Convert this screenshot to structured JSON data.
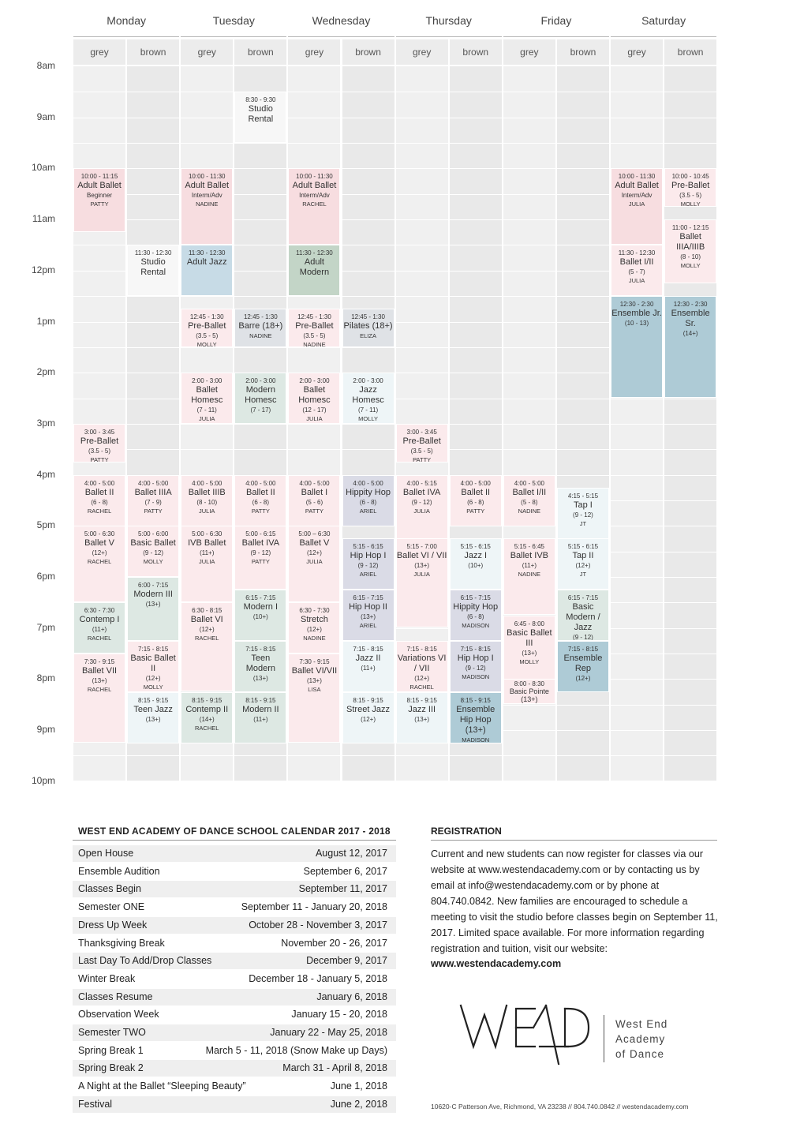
{
  "schedule": {
    "days": [
      "Monday",
      "Tuesday",
      "Wednesday",
      "Thursday",
      "Friday",
      "Saturday"
    ],
    "rooms": [
      "grey",
      "brown"
    ],
    "time_labels": [
      "8am",
      "9am",
      "10am",
      "11am",
      "12pm",
      "1pm",
      "2pm",
      "3pm",
      "4pm",
      "5pm",
      "6pm",
      "7pm",
      "8pm",
      "9pm",
      "10pm"
    ],
    "classes": [
      {
        "day": 1,
        "room": 1,
        "start": 8.5,
        "end": 9.5,
        "time": "8:30 - 9:30",
        "name": "Studio Rental",
        "age": "",
        "instructor": "",
        "color": "white"
      },
      {
        "day": 0,
        "room": 0,
        "start": 10.0,
        "end": 11.25,
        "time": "10:00 - 11:15",
        "name": "Adult Ballet",
        "age": "Beginner",
        "instructor": "PATTY",
        "color": "pink"
      },
      {
        "day": 0,
        "room": 1,
        "start": 11.5,
        "end": 12.5,
        "time": "11:30 - 12:30",
        "name": "Studio Rental",
        "age": "",
        "instructor": "",
        "color": "white"
      },
      {
        "day": 0,
        "room": 0,
        "start": 15.0,
        "end": 15.75,
        "time": "3:00 - 3:45",
        "name": "Pre-Ballet",
        "age": "(3.5 - 5)",
        "instructor": "PATTY",
        "color": "pinkL"
      },
      {
        "day": 0,
        "room": 0,
        "start": 16.0,
        "end": 17.0,
        "time": "4:00 - 5:00",
        "name": "Ballet II",
        "age": "(6 - 8)",
        "instructor": "RACHEL",
        "color": "pinkL"
      },
      {
        "day": 0,
        "room": 1,
        "start": 16.0,
        "end": 17.0,
        "time": "4:00 - 5:00",
        "name": "Ballet IIIA",
        "age": "(7 - 9)",
        "instructor": "PATTY",
        "color": "pinkL"
      },
      {
        "day": 0,
        "room": 0,
        "start": 17.0,
        "end": 18.5,
        "time": "5:00 - 6:30",
        "name": "Ballet V",
        "age": "(12+)",
        "instructor": "RACHEL",
        "color": "pinkL"
      },
      {
        "day": 0,
        "room": 1,
        "start": 17.0,
        "end": 18.0,
        "time": "5:00 - 6:00",
        "name": "Basic Ballet",
        "age": "(9 - 12)",
        "instructor": "MOLLY",
        "color": "pinkL"
      },
      {
        "day": 0,
        "room": 1,
        "start": 18.0,
        "end": 19.25,
        "time": "6:00 - 7:15",
        "name": "Modern III",
        "age": "(13+)",
        "instructor": "",
        "color": "greenL"
      },
      {
        "day": 0,
        "room": 0,
        "start": 18.5,
        "end": 19.5,
        "time": "6:30 - 7:30",
        "name": "Contemp I",
        "age": "(11+)",
        "instructor": "RACHEL",
        "color": "greenL"
      },
      {
        "day": 0,
        "room": 1,
        "start": 19.25,
        "end": 20.25,
        "time": "7:15 - 8:15",
        "name": "Basic Ballet II",
        "age": "(12+)",
        "instructor": "MOLLY",
        "color": "pinkL"
      },
      {
        "day": 0,
        "room": 0,
        "start": 19.5,
        "end": 21.25,
        "time": "7:30 - 9:15",
        "name": "Ballet VII",
        "age": "(13+)",
        "instructor": "RACHEL",
        "color": "pinkL"
      },
      {
        "day": 0,
        "room": 1,
        "start": 20.25,
        "end": 21.25,
        "time": "8:15 - 9:15",
        "name": "Teen Jazz",
        "age": "(13+)",
        "instructor": "",
        "color": "blueL"
      },
      {
        "day": 1,
        "room": 0,
        "start": 10.0,
        "end": 11.5,
        "time": "10:00 - 11:30",
        "name": "Adult Ballet",
        "age": "Interm/Adv",
        "instructor": "NADINE",
        "color": "pink"
      },
      {
        "day": 1,
        "room": 0,
        "start": 11.5,
        "end": 12.5,
        "time": "11:30 - 12:30",
        "name": "Adult Jazz",
        "age": "",
        "instructor": "",
        "color": "blue"
      },
      {
        "day": 1,
        "room": 0,
        "start": 12.75,
        "end": 13.5,
        "time": "12:45 - 1:30",
        "name": "Pre-Ballet",
        "age": "(3.5 - 5)",
        "instructor": "MOLLY",
        "color": "pinkL"
      },
      {
        "day": 1,
        "room": 1,
        "start": 12.75,
        "end": 13.5,
        "time": "12:45 - 1:30",
        "name": "Barre (18+)",
        "age": "",
        "instructor": "NADINE",
        "color": "grey2"
      },
      {
        "day": 1,
        "room": 0,
        "start": 14.0,
        "end": 15.0,
        "time": "2:00 - 3:00",
        "name": "Ballet Homesc",
        "age": "(7 - 11)",
        "instructor": "JULIA",
        "color": "pinkL"
      },
      {
        "day": 1,
        "room": 1,
        "start": 14.0,
        "end": 15.0,
        "time": "2:00 - 3:00",
        "name": "Modern Homesc",
        "age": "(7 - 17)",
        "instructor": "",
        "color": "greenL"
      },
      {
        "day": 1,
        "room": 0,
        "start": 16.0,
        "end": 17.0,
        "time": "4:00 - 5:00",
        "name": "Ballet IIIB",
        "age": "(8 - 10)",
        "instructor": "JULIA",
        "color": "pinkL"
      },
      {
        "day": 1,
        "room": 1,
        "start": 16.0,
        "end": 17.0,
        "time": "4:00 - 5:00",
        "name": "Ballet II",
        "age": "(6 - 8)",
        "instructor": "PATTY",
        "color": "pinkL"
      },
      {
        "day": 1,
        "room": 0,
        "start": 17.0,
        "end": 18.5,
        "time": "5:00 - 6:30",
        "name": "IVB Ballet",
        "age": "(11+)",
        "instructor": "JULIA",
        "color": "pinkL"
      },
      {
        "day": 1,
        "room": 1,
        "start": 17.0,
        "end": 18.25,
        "time": "5:00 - 6:15",
        "name": "Ballet IVA",
        "age": "(9 - 12)",
        "instructor": "PATTY",
        "color": "pinkL"
      },
      {
        "day": 1,
        "room": 1,
        "start": 18.25,
        "end": 19.25,
        "time": "6:15 - 7:15",
        "name": "Modern I",
        "age": "(10+)",
        "instructor": "",
        "color": "greenL"
      },
      {
        "day": 1,
        "room": 0,
        "start": 18.5,
        "end": 20.25,
        "time": "6:30 - 8:15",
        "name": "Ballet VI",
        "age": "(12+)",
        "instructor": "RACHEL",
        "color": "pinkL"
      },
      {
        "day": 1,
        "room": 1,
        "start": 19.25,
        "end": 20.25,
        "time": "7:15 - 8:15",
        "name": "Teen Modern",
        "age": "(13+)",
        "instructor": "",
        "color": "greenL"
      },
      {
        "day": 1,
        "room": 0,
        "start": 20.25,
        "end": 21.25,
        "time": "8:15 - 9:15",
        "name": "Contemp II",
        "age": "(14+)",
        "instructor": "RACHEL",
        "color": "greenL"
      },
      {
        "day": 1,
        "room": 1,
        "start": 20.25,
        "end": 21.25,
        "time": "8:15 - 9:15",
        "name": "Modern II",
        "age": "(11+)",
        "instructor": "",
        "color": "greenL"
      },
      {
        "day": 2,
        "room": 0,
        "start": 10.0,
        "end": 11.5,
        "time": "10:00 - 11:30",
        "name": "Adult Ballet",
        "age": "Interm/Adv",
        "instructor": "RACHEL",
        "color": "pink"
      },
      {
        "day": 2,
        "room": 0,
        "start": 11.5,
        "end": 12.5,
        "time": "11:30 - 12:30",
        "name": "Adult Modern",
        "age": "",
        "instructor": "",
        "color": "green"
      },
      {
        "day": 2,
        "room": 0,
        "start": 12.75,
        "end": 13.5,
        "time": "12:45 - 1:30",
        "name": "Pre-Ballet",
        "age": "(3.5 - 5)",
        "instructor": "NADINE",
        "color": "pinkL"
      },
      {
        "day": 2,
        "room": 1,
        "start": 12.75,
        "end": 13.5,
        "time": "12:45 - 1:30",
        "name": "Pilates (18+)",
        "age": "",
        "instructor": "ELIZA",
        "color": "grey2"
      },
      {
        "day": 2,
        "room": 0,
        "start": 14.0,
        "end": 15.0,
        "time": "2:00 - 3:00",
        "name": "Ballet Homesc",
        "age": "(12 - 17)",
        "instructor": "JULIA",
        "color": "pinkL"
      },
      {
        "day": 2,
        "room": 1,
        "start": 14.0,
        "end": 15.0,
        "time": "2:00 - 3:00",
        "name": "Jazz Homesc",
        "age": "(7 - 11)",
        "instructor": "MOLLY",
        "color": "blueL"
      },
      {
        "day": 2,
        "room": 0,
        "start": 16.0,
        "end": 17.0,
        "time": "4:00 - 5:00",
        "name": "Ballet I",
        "age": "(5 - 6)",
        "instructor": "PATTY",
        "color": "pinkL"
      },
      {
        "day": 2,
        "room": 1,
        "start": 16.0,
        "end": 17.0,
        "time": "4:00 - 5:00",
        "name": "Hippity Hop",
        "age": "(6 - 8)",
        "instructor": "ARIEL",
        "color": "lav"
      },
      {
        "day": 2,
        "room": 0,
        "start": 17.0,
        "end": 18.5,
        "time": "5:00 – 6:30",
        "name": "Ballet V",
        "age": "(12+)",
        "instructor": "JULIA",
        "color": "pinkL"
      },
      {
        "day": 2,
        "room": 1,
        "start": 17.25,
        "end": 18.25,
        "time": "5:15 - 6:15",
        "name": "Hip Hop I",
        "age": "(9 - 12)",
        "instructor": "ARIEL",
        "color": "lav"
      },
      {
        "day": 2,
        "room": 1,
        "start": 18.25,
        "end": 19.25,
        "time": "6:15 - 7:15",
        "name": "Hip Hop II",
        "age": "(13+)",
        "instructor": "ARIEL",
        "color": "lav"
      },
      {
        "day": 2,
        "room": 0,
        "start": 18.5,
        "end": 19.5,
        "time": "6:30 - 7:30",
        "name": "Stretch",
        "age": "(12+)",
        "instructor": "NADINE",
        "color": "pinkL"
      },
      {
        "day": 2,
        "room": 1,
        "start": 19.25,
        "end": 20.25,
        "time": "7:15 - 8:15",
        "name": "Jazz II",
        "age": "(11+)",
        "instructor": "",
        "color": "blueL"
      },
      {
        "day": 2,
        "room": 0,
        "start": 19.5,
        "end": 21.25,
        "time": "7:30 - 9:15",
        "name": "Ballet VI/VII",
        "age": "(13+)",
        "instructor": "LISA",
        "color": "pinkL"
      },
      {
        "day": 2,
        "room": 1,
        "start": 20.25,
        "end": 21.25,
        "time": "8:15 - 9:15",
        "name": "Street Jazz",
        "age": "(12+)",
        "instructor": "",
        "color": "blueL"
      },
      {
        "day": 3,
        "room": 0,
        "start": 15.0,
        "end": 15.75,
        "time": "3:00 - 3:45",
        "name": "Pre-Ballet",
        "age": "(3.5 - 5)",
        "instructor": "PATTY",
        "color": "pinkL"
      },
      {
        "day": 3,
        "room": 0,
        "start": 16.0,
        "end": 17.25,
        "time": "4:00 - 5:15",
        "name": "Ballet IVA",
        "age": "(9 - 12)",
        "instructor": "JULIA",
        "color": "pinkL"
      },
      {
        "day": 3,
        "room": 1,
        "start": 16.0,
        "end": 17.0,
        "time": "4:00 - 5:00",
        "name": "Ballet II",
        "age": "(6 - 8)",
        "instructor": "PATTY",
        "color": "pinkL"
      },
      {
        "day": 3,
        "room": 0,
        "start": 17.25,
        "end": 19.0,
        "time": "5:15 - 7:00",
        "name": "Ballet VI / VII",
        "age": "(13+)",
        "instructor": "JULIA",
        "color": "pinkL"
      },
      {
        "day": 3,
        "room": 1,
        "start": 17.25,
        "end": 18.25,
        "time": "5:15 - 6:15",
        "name": "Jazz I",
        "age": "(10+)",
        "instructor": "",
        "color": "blueL"
      },
      {
        "day": 3,
        "room": 1,
        "start": 18.25,
        "end": 19.25,
        "time": "6:15 - 7:15",
        "name": "Hippity Hop",
        "age": "(6 - 8)",
        "instructor": "MADISON",
        "color": "lav"
      },
      {
        "day": 3,
        "room": 0,
        "start": 19.25,
        "end": 20.25,
        "time": "7:15 - 8:15",
        "name": "Variations VI / VII",
        "age": "(12+)",
        "instructor": "RACHEL",
        "color": "pinkL"
      },
      {
        "day": 3,
        "room": 1,
        "start": 19.25,
        "end": 20.25,
        "time": "7:15 - 8:15",
        "name": "Hip Hop I",
        "age": "(9 - 12)",
        "instructor": "MADISON",
        "color": "lav"
      },
      {
        "day": 3,
        "room": 0,
        "start": 20.25,
        "end": 21.25,
        "time": "8:15 - 9:15",
        "name": "Jazz III",
        "age": "(13+)",
        "instructor": "",
        "color": "blueL"
      },
      {
        "day": 3,
        "room": 1,
        "start": 20.25,
        "end": 21.25,
        "time": "8:15 - 9:15",
        "name": "Ensemble Hip Hop (13+)",
        "age": "",
        "instructor": "MADISON",
        "color": "teal"
      },
      {
        "day": 4,
        "room": 0,
        "start": 16.0,
        "end": 17.0,
        "time": "4:00 - 5:00",
        "name": "Ballet I/II",
        "age": "(5 - 8)",
        "instructor": "NADINE",
        "color": "pinkL"
      },
      {
        "day": 4,
        "room": 1,
        "start": 16.25,
        "end": 17.25,
        "time": "4:15 - 5:15",
        "name": "Tap I",
        "age": "(9 - 12)",
        "instructor": "JT",
        "color": "blueL"
      },
      {
        "day": 4,
        "room": 0,
        "start": 17.25,
        "end": 18.75,
        "time": "5:15 - 6:45",
        "name": "Ballet IVB",
        "age": "(11+)",
        "instructor": "NADINE",
        "color": "pinkL"
      },
      {
        "day": 4,
        "room": 1,
        "start": 17.25,
        "end": 18.25,
        "time": "5:15 - 6:15",
        "name": "Tap II",
        "age": "(12+)",
        "instructor": "JT",
        "color": "blueL"
      },
      {
        "day": 4,
        "room": 1,
        "start": 18.25,
        "end": 19.25,
        "time": "6:15 - 7:15",
        "name": "Basic Modern / Jazz",
        "age": "(9 - 12)",
        "instructor": "",
        "color": "greenL"
      },
      {
        "day": 4,
        "room": 0,
        "start": 18.75,
        "end": 20.0,
        "time": "6:45 - 8:00",
        "name": "Basic Ballet III",
        "age": "(13+)",
        "instructor": "MOLLY",
        "color": "pinkL"
      },
      {
        "day": 4,
        "room": 1,
        "start": 19.25,
        "end": 20.25,
        "time": "7:15 - 8:15",
        "name": "Ensemble Rep",
        "age": "(12+)",
        "instructor": "",
        "color": "teal"
      },
      {
        "day": 4,
        "room": 0,
        "start": 20.0,
        "end": 20.5,
        "time": "8:00 - 8:30",
        "name": "Basic Pointe (13+)",
        "age": "",
        "instructor": "MOLLY",
        "color": "pinkL"
      },
      {
        "day": 5,
        "room": 0,
        "start": 10.0,
        "end": 11.5,
        "time": "10:00 - 11:30",
        "name": "Adult Ballet",
        "age": "Interm/Adv",
        "instructor": "JULIA",
        "color": "pink"
      },
      {
        "day": 5,
        "room": 1,
        "start": 10.0,
        "end": 10.75,
        "time": "10:00 - 10:45",
        "name": "Pre-Ballet",
        "age": "(3.5 - 5)",
        "instructor": "MOLLY",
        "color": "pinkL"
      },
      {
        "day": 5,
        "room": 1,
        "start": 11.0,
        "end": 12.25,
        "time": "11:00 - 12:15",
        "name": "Ballet IIIA/IIIB",
        "age": "(8 - 10)",
        "instructor": "MOLLY",
        "color": "pinkL"
      },
      {
        "day": 5,
        "room": 0,
        "start": 11.5,
        "end": 12.5,
        "time": "11:30 - 12:30",
        "name": "Ballet I/II",
        "age": "(5 - 7)",
        "instructor": "JULIA",
        "color": "pinkL"
      },
      {
        "day": 5,
        "room": 0,
        "start": 12.5,
        "end": 14.5,
        "time": "12:30 - 2:30",
        "name": "Ensemble Jr.",
        "age": "(10 - 13)",
        "instructor": "",
        "color": "teal"
      },
      {
        "day": 5,
        "room": 1,
        "start": 12.5,
        "end": 14.5,
        "time": "12:30 - 2:30",
        "name": "Ensemble Sr.",
        "age": "(14+)",
        "instructor": "",
        "color": "teal"
      }
    ]
  },
  "calendar": {
    "title": "WEST END ACADEMY OF DANCE SCHOOL CALENDAR 2017 - 2018",
    "rows": [
      {
        "event": "Open House",
        "date": "August 12, 2017"
      },
      {
        "event": "Ensemble Audition",
        "date": "September 6, 2017"
      },
      {
        "event": "Classes Begin",
        "date": "September 11, 2017"
      },
      {
        "event": "Semester ONE",
        "date": "September 11 - January 20, 2018"
      },
      {
        "event": "Dress Up Week",
        "date": "October 28 - November 3, 2017"
      },
      {
        "event": "Thanksgiving Break",
        "date": "November 20 - 26, 2017"
      },
      {
        "event": "Last Day To Add/Drop Classes",
        "date": "December 9, 2017"
      },
      {
        "event": "Winter Break",
        "date": "December 18 - January 5, 2018"
      },
      {
        "event": "Classes Resume",
        "date": "January 6, 2018"
      },
      {
        "event": "Observation Week",
        "date": "January 15 - 20, 2018"
      },
      {
        "event": "Semester TWO",
        "date": "January 22 - May 25, 2018"
      },
      {
        "event": "Spring Break 1",
        "date": "March 5 - 11, 2018 (Snow Make up Days)"
      },
      {
        "event": "Spring Break 2",
        "date": "March 31 - April 8, 2018"
      },
      {
        "event": "A Night at the Ballet “Sleeping Beauty”",
        "date": "June 1, 2018"
      },
      {
        "event": "Festival",
        "date": "June 2, 2018"
      }
    ]
  },
  "registration": {
    "title": "REGISTRATION",
    "text": "Current and new students can now register for classes via our website at www.westendacademy.com or by contacting us by email at info@westendacademy.com or by phone at 804.740.0842. New families are encouraged to schedule a meeting to visit the studio before classes begin on September 11, 2017. Limited space available. For more information regarding registration and tuition, visit our website:",
    "link": "www.westendacademy.com"
  },
  "logo": {
    "mark": "WEAD",
    "name_lines": [
      "West End",
      "Academy",
      "of Dance"
    ]
  },
  "footer": "10620-C Patterson Ave, Richmond, VA 23238  //  804.740.0842  //  westendacademy.com",
  "colors": {
    "pink": "#f7dde0",
    "pinkL": "#fbeaec",
    "blue": "#c7dbe6",
    "blueL": "#eef5f7",
    "teal": "#aecbd6",
    "green": "#c3d5c7",
    "greenL": "#dde8e3",
    "lav": "#dadbe6",
    "grey2": "#dfe2e6",
    "white": "#f7f7f7"
  }
}
